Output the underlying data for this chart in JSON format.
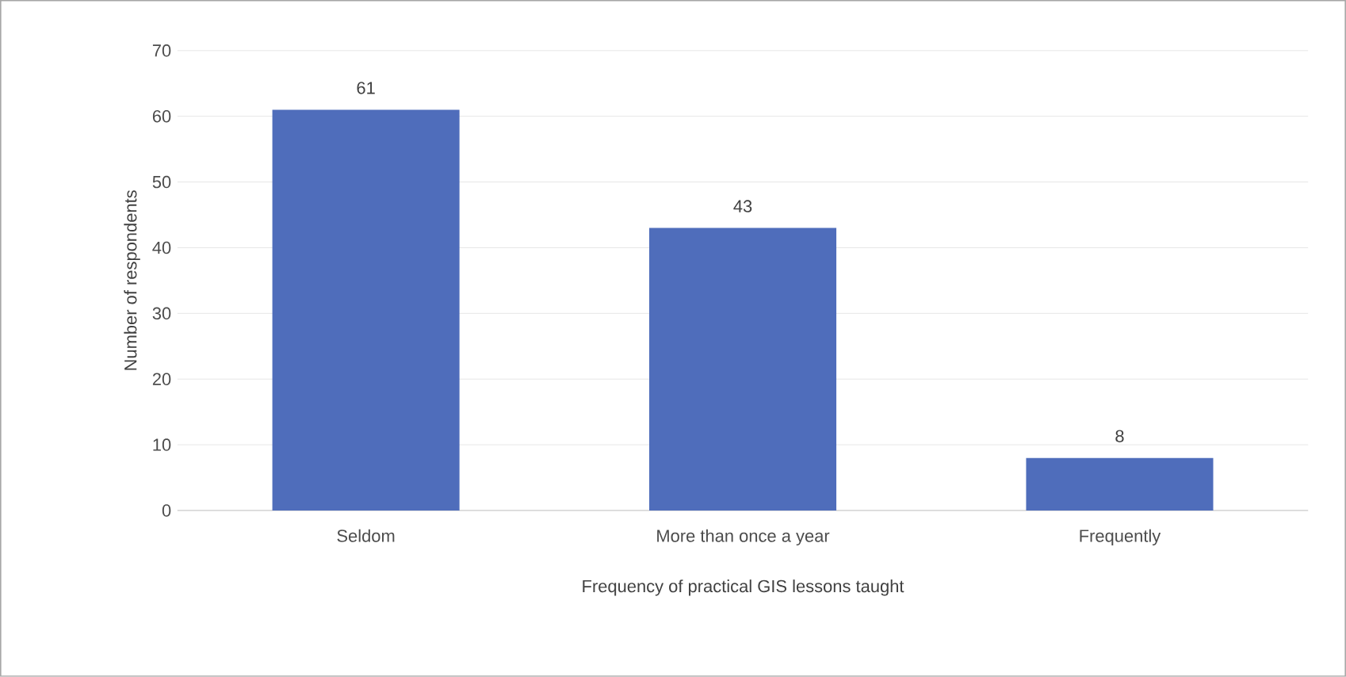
{
  "chart_data": {
    "type": "bar",
    "xlabel": "Frequency of practical GIS lessons taught",
    "ylabel": "Number of respondents",
    "categories": [
      "Seldom",
      "More than once a year",
      "Frequently"
    ],
    "values": [
      61,
      43,
      8
    ],
    "color": "#4f6dbb",
    "ylim": [
      0,
      70
    ],
    "yticks": [
      0,
      10,
      20,
      30,
      40,
      50,
      60,
      70
    ],
    "grid": "y",
    "data_labels": true
  }
}
